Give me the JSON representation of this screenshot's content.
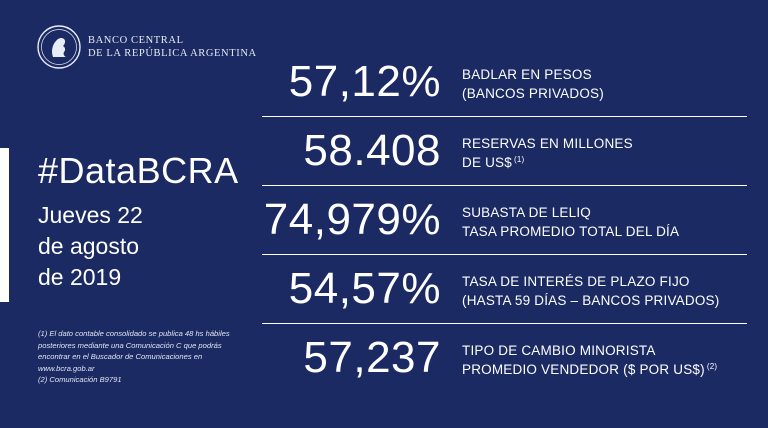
{
  "brand": {
    "name_line1": "BANCO CENTRAL",
    "name_line2": "DE LA REPÚBLICA ARGENTINA",
    "logo_icon": "bcra-seal-icon"
  },
  "title": {
    "hashtag": "#DataBCRA",
    "date_line1": "Jueves 22",
    "date_line2": "de agosto",
    "date_line3": "de 2019"
  },
  "stats": [
    {
      "value": "57,12%",
      "label_line1": "BADLAR EN PESOS",
      "label_line2": "(BANCOS PRIVADOS)",
      "sup": ""
    },
    {
      "value": "58.408",
      "label_line1": "RESERVAS EN MILLONES",
      "label_line2": "DE US$",
      "sup": "(1)"
    },
    {
      "value": "74,979%",
      "label_line1": "SUBASTA DE LELIQ",
      "label_line2": "TASA PROMEDIO TOTAL DEL DÍA",
      "sup": ""
    },
    {
      "value": "54,57%",
      "label_line1": "TASA DE INTERÉS DE PLAZO FIJO",
      "label_line2": "(HASTA 59 DÍAS – BANCOS PRIVADOS)",
      "sup": ""
    },
    {
      "value": "57,237",
      "label_line1": "TIPO DE CAMBIO MINORISTA",
      "label_line2": "PROMEDIO VENDEDOR ($ POR US$)",
      "sup": "(2)"
    }
  ],
  "footnotes": {
    "line1": "(1) El dato contable consolidado se publica 48 hs hábiles",
    "line2": "posteriores mediante una Comunicación C que podrás",
    "line3": "encontrar en el Buscador de Comunicaciones en",
    "line4": "www.bcra.gob.ar",
    "line5": "(2) Comunicación B9791"
  },
  "colors": {
    "background": "#1b2a63",
    "text": "#ffffff"
  }
}
